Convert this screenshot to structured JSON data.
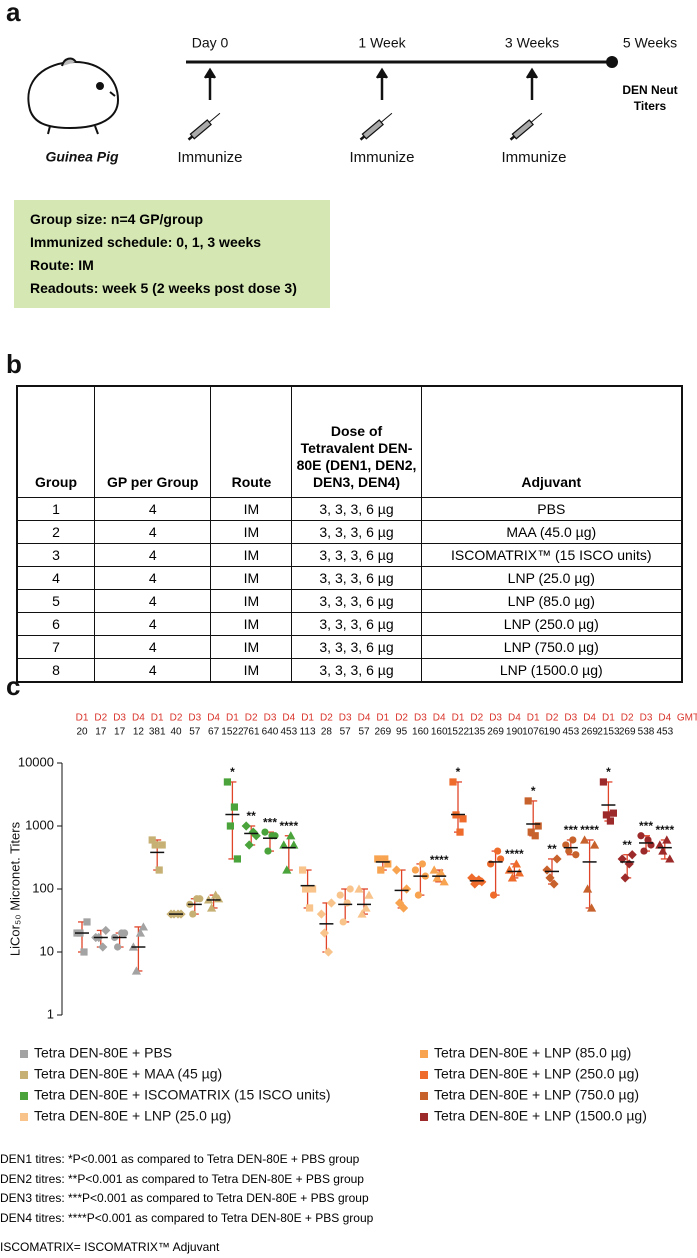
{
  "panel_labels": [
    "a",
    "b",
    "c"
  ],
  "schedule": {
    "times": [
      "Day 0",
      "1 Week",
      "3 Weeks",
      "5 Weeks"
    ],
    "animal": "Guinea Pig",
    "actions": [
      "Immunize",
      "Immunize",
      "Immunize"
    ],
    "readout": "DEN Neut Titers"
  },
  "info_box": [
    "Group size: n=4 GP/group",
    "Immunized schedule: 0, 1, 3 weeks",
    "Route: IM",
    "Readouts: week 5 (2 weeks post dose 3)"
  ],
  "table": {
    "header": [
      "Group",
      "GP per Group",
      "Route",
      "Dose of Tetravalent DEN-80E (DEN1, DEN2, DEN3, DEN4)",
      "Adjuvant"
    ],
    "rows": [
      [
        "1",
        "4",
        "IM",
        "3, 3, 3, 6 µg",
        "PBS"
      ],
      [
        "2",
        "4",
        "IM",
        "3, 3, 3, 6 µg",
        "MAA (45.0 µg)"
      ],
      [
        "3",
        "4",
        "IM",
        "3, 3, 3, 6 µg",
        "ISCOMATRIX™ (15 ISCO units)"
      ],
      [
        "4",
        "4",
        "IM",
        "3, 3, 3, 6 µg",
        "LNP (25.0 µg)"
      ],
      [
        "5",
        "4",
        "IM",
        "3, 3, 3, 6 µg",
        "LNP (85.0 µg)"
      ],
      [
        "6",
        "4",
        "IM",
        "3, 3, 3, 6 µg",
        "LNP (250.0 µg)"
      ],
      [
        "7",
        "4",
        "IM",
        "3, 3, 3, 6 µg",
        "LNP (750.0 µg)"
      ],
      [
        "8",
        "4",
        "IM",
        "3, 3, 3, 6 µg",
        "LNP (1500.0 µg)"
      ]
    ]
  },
  "chart_data": {
    "type": "dot",
    "ylabel": "LiCor₅₀ Micronet. Titers",
    "log_scale": true,
    "ylim": [
      1,
      10000
    ],
    "yticks": [
      1,
      10,
      100,
      1000,
      10000
    ],
    "gmt_label": "GMT",
    "error_color": "#e0452a",
    "series": [
      {
        "name": "Tetra DEN-80E + PBS",
        "color": "#a3a3a3",
        "groups": [
          {
            "label": "D1",
            "gmt": 20,
            "points": [
              20,
              20,
              10,
              30
            ]
          },
          {
            "label": "D2",
            "gmt": 17,
            "points": [
              17,
              17,
              12,
              22
            ]
          },
          {
            "label": "D3",
            "gmt": 17,
            "points": [
              17,
              12,
              20,
              20
            ]
          },
          {
            "label": "D4",
            "gmt": 12,
            "points": [
              12,
              5,
              20,
              25
            ]
          }
        ]
      },
      {
        "name": "Tetra DEN-80E + MAA (45 µg)",
        "color": "#c6b074",
        "groups": [
          {
            "label": "D1",
            "gmt": 381,
            "points": [
              600,
              500,
              200,
              500
            ]
          },
          {
            "label": "D2",
            "gmt": 40,
            "points": [
              40,
              40,
              40,
              40
            ]
          },
          {
            "label": "D3",
            "gmt": 57,
            "points": [
              57,
              40,
              70,
              70
            ]
          },
          {
            "label": "D4",
            "gmt": 67,
            "points": [
              67,
              50,
              80,
              70
            ]
          }
        ]
      },
      {
        "name": "Tetra DEN-80E + ISCOMATRIX (15 ISCO units)",
        "color": "#4aa33b",
        "groups": [
          {
            "label": "D1",
            "gmt": 1522,
            "points": [
              5000,
              1000,
              2000,
              300
            ],
            "stars": "*"
          },
          {
            "label": "D2",
            "gmt": 761,
            "points": [
              1000,
              500,
              800,
              700
            ],
            "stars": "**"
          },
          {
            "label": "D3",
            "gmt": 640,
            "points": [
              800,
              400,
              700,
              700
            ],
            "stars": "***"
          },
          {
            "label": "D4",
            "gmt": 453,
            "points": [
              500,
              200,
              700,
              500
            ],
            "stars": "****"
          }
        ]
      },
      {
        "name": "Tetra DEN-80E + LNP (25.0 µg)",
        "color": "#f9c48c",
        "groups": [
          {
            "label": "D1",
            "gmt": 113,
            "points": [
              200,
              100,
              50,
              100
            ]
          },
          {
            "label": "D2",
            "gmt": 28,
            "points": [
              40,
              20,
              10,
              60
            ]
          },
          {
            "label": "D3",
            "gmt": 57,
            "points": [
              80,
              30,
              60,
              100
            ]
          },
          {
            "label": "D4",
            "gmt": 57,
            "points": [
              100,
              40,
              50,
              80
            ]
          }
        ]
      },
      {
        "name": "Tetra DEN-80E + LNP (85.0 µg)",
        "color": "#f7a350",
        "groups": [
          {
            "label": "D1",
            "gmt": 269,
            "points": [
              300,
              200,
              300,
              250
            ]
          },
          {
            "label": "D2",
            "gmt": 95,
            "points": [
              200,
              60,
              50,
              100
            ]
          },
          {
            "label": "D3",
            "gmt": 160,
            "points": [
              200,
              80,
              250,
              160
            ]
          },
          {
            "label": "D4",
            "gmt": 160,
            "points": [
              200,
              150,
              180,
              130
            ],
            "stars": "****"
          }
        ]
      },
      {
        "name": "Tetra DEN-80E + LNP (250.0 µg)",
        "color": "#ee6b2c",
        "groups": [
          {
            "label": "D1",
            "gmt": 1522,
            "points": [
              5000,
              1500,
              800,
              1300
            ],
            "stars": "*"
          },
          {
            "label": "D2",
            "gmt": 135,
            "points": [
              150,
              120,
              140,
              130
            ]
          },
          {
            "label": "D3",
            "gmt": 269,
            "points": [
              250,
              80,
              400,
              300
            ]
          },
          {
            "label": "D4",
            "gmt": 190,
            "points": [
              200,
              150,
              250,
              180
            ],
            "stars": "****"
          }
        ]
      },
      {
        "name": "Tetra DEN-80E + LNP (750.0 µg)",
        "color": "#c8622c",
        "groups": [
          {
            "label": "D1",
            "gmt": 1076,
            "points": [
              2500,
              800,
              700,
              1000
            ],
            "stars": "*"
          },
          {
            "label": "D2",
            "gmt": 190,
            "points": [
              200,
              150,
              120,
              300
            ],
            "stars": "**"
          },
          {
            "label": "D3",
            "gmt": 453,
            "points": [
              500,
              400,
              600,
              350
            ],
            "stars": "***"
          },
          {
            "label": "D4",
            "gmt": 269,
            "points": [
              600,
              100,
              50,
              500
            ],
            "stars": "****"
          }
        ]
      },
      {
        "name": "Tetra DEN-80E + LNP (1500.0 µg)",
        "color": "#9d2a2a",
        "groups": [
          {
            "label": "D1",
            "gmt": 2153,
            "points": [
              5000,
              1500,
              1200,
              1600
            ],
            "stars": "*"
          },
          {
            "label": "D2",
            "gmt": 269,
            "points": [
              300,
              150,
              250,
              350
            ],
            "stars": "**"
          },
          {
            "label": "D3",
            "gmt": 538,
            "points": [
              700,
              400,
              600,
              500
            ],
            "stars": "***"
          },
          {
            "label": "D4",
            "gmt": 453,
            "points": [
              500,
              400,
              600,
              300
            ],
            "stars": "****"
          }
        ]
      }
    ]
  },
  "footnotes": [
    "DEN1 titres: *P<0.001 as compared to Tetra DEN-80E + PBS group",
    "DEN2 titres: **P<0.001 as compared to Tetra DEN-80E + PBS group",
    "DEN3 titres: ***P<0.001 as compared to Tetra DEN-80E + PBS group",
    "DEN4 titres: ****P<0.001 as compared to Tetra DEN-80E + PBS group",
    "ISCOMATRIX= ISCOMATRIX™ Adjuvant"
  ]
}
